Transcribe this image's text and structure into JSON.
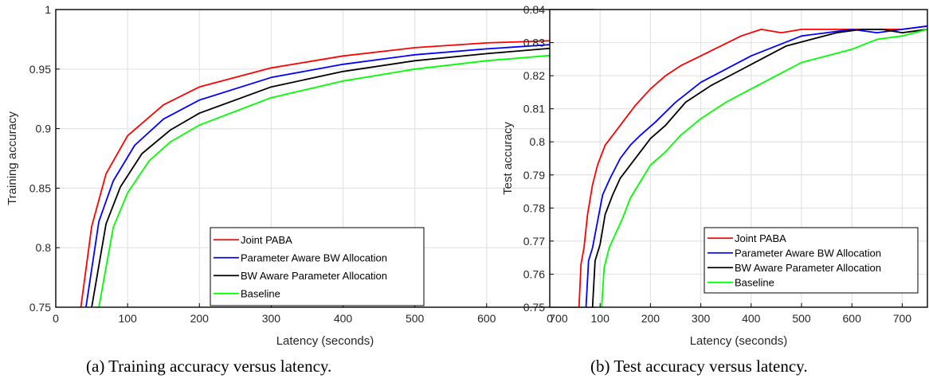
{
  "chart_data": [
    {
      "type": "line",
      "caption": "(a) Training accuracy versus latency.",
      "xlabel": "Latency (seconds)",
      "ylabel": "Training accuracy",
      "xlim": [
        0,
        750
      ],
      "ylim": [
        0.75,
        1
      ],
      "xticks": [
        "0",
        "100",
        "200",
        "300",
        "400",
        "500",
        "600",
        "700"
      ],
      "yticks": [
        "0.75",
        "0.8",
        "0.85",
        "0.9",
        "0.95",
        "1"
      ],
      "grid": true,
      "legend": "bottom-right",
      "series": [
        {
          "name": "Joint PABA",
          "color": "#ff0000",
          "x": [
            35,
            50,
            70,
            100,
            150,
            200,
            300,
            400,
            500,
            600,
            700,
            750
          ],
          "y": [
            0.75,
            0.818,
            0.862,
            0.894,
            0.92,
            0.935,
            0.951,
            0.961,
            0.968,
            0.972,
            0.974,
            0.975
          ]
        },
        {
          "name": "Parameter Aware BW Allocation",
          "color": "#0000ff",
          "x": [
            42,
            60,
            80,
            110,
            150,
            200,
            300,
            400,
            500,
            600,
            700,
            750
          ],
          "y": [
            0.75,
            0.822,
            0.856,
            0.886,
            0.908,
            0.924,
            0.943,
            0.954,
            0.962,
            0.967,
            0.971,
            0.972
          ]
        },
        {
          "name": "BW Aware Parameter Allocation",
          "color": "#000000",
          "x": [
            50,
            70,
            90,
            120,
            160,
            200,
            300,
            400,
            500,
            600,
            700,
            750
          ],
          "y": [
            0.75,
            0.82,
            0.851,
            0.879,
            0.899,
            0.913,
            0.935,
            0.948,
            0.957,
            0.963,
            0.968,
            0.97
          ]
        },
        {
          "name": "Baseline",
          "color": "#00ff00",
          "x": [
            60,
            80,
            100,
            130,
            160,
            200,
            300,
            400,
            500,
            600,
            700,
            750
          ],
          "y": [
            0.75,
            0.817,
            0.846,
            0.873,
            0.889,
            0.903,
            0.926,
            0.94,
            0.95,
            0.957,
            0.962,
            0.965
          ]
        }
      ]
    },
    {
      "type": "line",
      "caption": "(b) Test accuracy versus latency.",
      "xlabel": "Latency (seconds)",
      "ylabel": "Test accuracy",
      "xlim": [
        0,
        750
      ],
      "ylim": [
        0.75,
        0.84
      ],
      "xticks": [
        "0",
        "100",
        "200",
        "300",
        "400",
        "500",
        "600",
        "700"
      ],
      "yticks": [
        "0.75",
        "0.76",
        "0.77",
        "0.78",
        "0.79",
        "0.8",
        "0.81",
        "0.82",
        "0.83",
        "0.84"
      ],
      "grid": true,
      "legend": "bottom-right",
      "series": [
        {
          "name": "Joint PABA",
          "color": "#ff0000",
          "x": [
            58,
            62,
            68,
            75,
            85,
            95,
            110,
            130,
            150,
            170,
            200,
            230,
            260,
            300,
            340,
            380,
            420,
            460,
            500,
            560,
            600,
            650,
            700,
            750
          ],
          "y": [
            0.75,
            0.763,
            0.768,
            0.778,
            0.787,
            0.793,
            0.799,
            0.803,
            0.807,
            0.811,
            0.816,
            0.82,
            0.823,
            0.826,
            0.829,
            0.832,
            0.834,
            0.833,
            0.834,
            0.834,
            0.834,
            0.834,
            0.834,
            0.835
          ]
        },
        {
          "name": "Parameter Aware BW Allocation",
          "color": "#0000ff",
          "x": [
            72,
            77,
            85,
            95,
            105,
            120,
            140,
            160,
            180,
            210,
            250,
            300,
            350,
            400,
            450,
            500,
            550,
            600,
            650,
            700,
            750
          ],
          "y": [
            0.75,
            0.764,
            0.768,
            0.776,
            0.784,
            0.789,
            0.795,
            0.799,
            0.802,
            0.806,
            0.812,
            0.818,
            0.822,
            0.826,
            0.829,
            0.832,
            0.833,
            0.834,
            0.833,
            0.834,
            0.835
          ]
        },
        {
          "name": "BW Aware Parameter Allocation",
          "color": "#000000",
          "x": [
            85,
            90,
            100,
            110,
            125,
            140,
            160,
            180,
            200,
            230,
            270,
            320,
            370,
            420,
            470,
            520,
            570,
            620,
            660,
            700,
            750
          ],
          "y": [
            0.75,
            0.764,
            0.769,
            0.778,
            0.784,
            0.789,
            0.793,
            0.797,
            0.801,
            0.805,
            0.812,
            0.817,
            0.821,
            0.825,
            0.829,
            0.831,
            0.833,
            0.834,
            0.834,
            0.833,
            0.834
          ]
        },
        {
          "name": "Baseline",
          "color": "#00ff00",
          "x": [
            103,
            108,
            118,
            130,
            145,
            160,
            180,
            200,
            230,
            260,
            300,
            350,
            400,
            450,
            500,
            550,
            600,
            650,
            700,
            750
          ],
          "y": [
            0.75,
            0.762,
            0.768,
            0.772,
            0.777,
            0.783,
            0.788,
            0.793,
            0.797,
            0.802,
            0.807,
            0.812,
            0.816,
            0.82,
            0.824,
            0.826,
            0.828,
            0.831,
            0.832,
            0.834
          ]
        }
      ]
    }
  ]
}
